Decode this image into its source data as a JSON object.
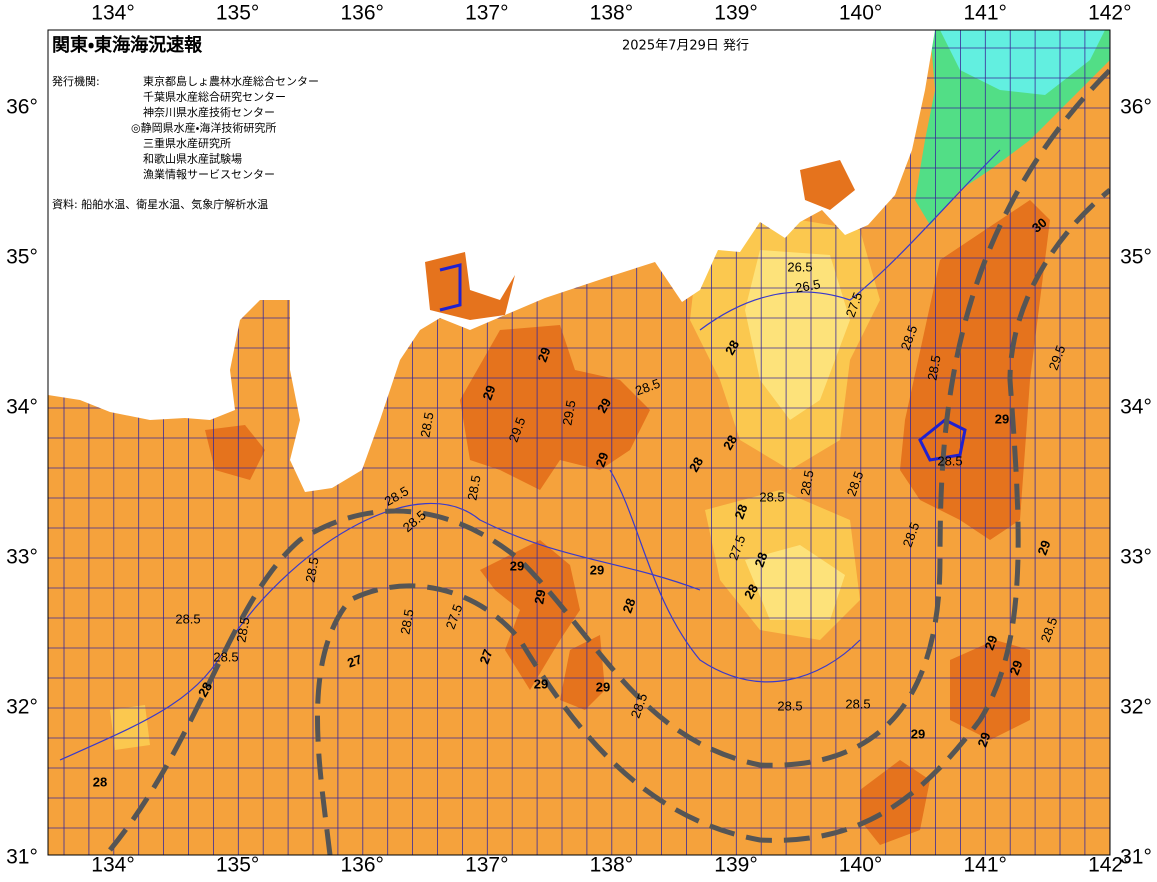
{
  "header": {
    "title": "関東・東海海況速報",
    "date": "2025年7月29日 発行",
    "issuers_label": "発行機関:",
    "issuers": [
      "東京都島しょ農林水産総合センター",
      "千葉県水産総合研究センター",
      "神奈川県水産技術センター",
      "◎静岡県水産・海洋技術研究所",
      "三重県水産研究所",
      "和歌山県水産試験場",
      "漁業情報サービスセンター"
    ],
    "source": "資料: 船舶水温、衛星水温、気象庁解析水温"
  },
  "map": {
    "lon_labels": [
      "134°",
      "135°",
      "136°",
      "137°",
      "138°",
      "139°",
      "140°",
      "141°",
      "142°"
    ],
    "lat_labels": [
      "36°",
      "35°",
      "34°",
      "33°",
      "32°",
      "31°"
    ],
    "contour_labels": [
      "26.5",
      "26.5",
      "27.5",
      "28",
      "28.5",
      "29",
      "29",
      "29.5",
      "29.5",
      "29",
      "28.5",
      "29",
      "28.5",
      "28.5",
      "28.5",
      "28.5",
      "28.5",
      "28.5",
      "28.5",
      "28.5",
      "29",
      "29",
      "29",
      "29",
      "29",
      "28",
      "28.5",
      "27.5",
      "27",
      "27",
      "28",
      "28",
      "28.5",
      "28.5",
      "28",
      "28",
      "27.5",
      "28",
      "28.5",
      "28.5",
      "28.5",
      "28.5",
      "29",
      "30",
      "29.5",
      "29",
      "29",
      "29",
      "28.5",
      "28.5",
      "28.5",
      "29",
      "29",
      "28.5",
      "28",
      "28"
    ]
  }
}
